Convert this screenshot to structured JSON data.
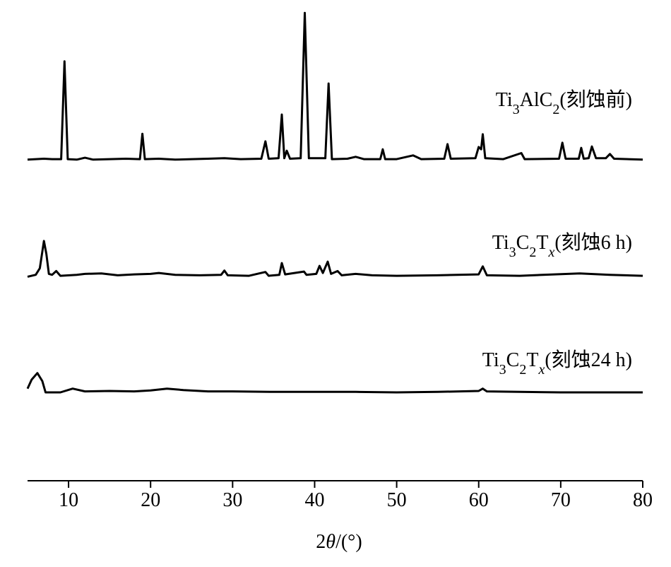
{
  "chart_data": {
    "type": "line",
    "x_label": "2θ/(°)",
    "xlim": [
      5,
      80
    ],
    "xticks": [
      10,
      20,
      30,
      40,
      50,
      60,
      70,
      80
    ],
    "ylim": [
      0,
      100
    ],
    "series": [
      {
        "name": "Ti3AlC2(刻蚀前)",
        "color": "#000000",
        "x": [
          5,
          7,
          8,
          9.1,
          9.5,
          9.9,
          11,
          12,
          13,
          15,
          17,
          18.7,
          19,
          19.3,
          21,
          23,
          25,
          27,
          29,
          31,
          33.5,
          34,
          34.4,
          35.6,
          36,
          36.3,
          36.6,
          37,
          38.3,
          38.8,
          39.3,
          41.3,
          41.7,
          42.1,
          44,
          45,
          46,
          48,
          48.3,
          48.6,
          50,
          52,
          53,
          55.8,
          56.2,
          56.6,
          59.6,
          60,
          60.3,
          60.5,
          60.8,
          63,
          65.2,
          65.6,
          69.8,
          70.2,
          70.6,
          72.2,
          72.5,
          72.8,
          73.4,
          73.8,
          74.3,
          75.5,
          76,
          76.5,
          80
        ],
        "values": [
          68.3,
          68.5,
          68.4,
          68.4,
          89.2,
          68.4,
          68.3,
          68.7,
          68.3,
          68.4,
          68.5,
          68.4,
          73.8,
          68.4,
          68.5,
          68.3,
          68.4,
          68.5,
          68.6,
          68.4,
          68.5,
          72.2,
          68.5,
          68.6,
          77.9,
          68.6,
          70.2,
          68.5,
          68.6,
          99.5,
          68.6,
          68.6,
          84.5,
          68.4,
          68.5,
          68.9,
          68.4,
          68.4,
          70.5,
          68.4,
          68.4,
          69.2,
          68.4,
          68.5,
          71.6,
          68.5,
          68.6,
          71,
          70.5,
          73.7,
          68.6,
          68.4,
          69.7,
          68.4,
          68.5,
          71.9,
          68.5,
          68.5,
          70.8,
          68.5,
          68.6,
          71.1,
          68.6,
          68.6,
          69.5,
          68.5,
          68.3
        ]
      },
      {
        "name": "Ti3C2Tx(刻蚀6 h)",
        "color": "#000000",
        "x": [
          5,
          6,
          6.5,
          7,
          7.3,
          7.6,
          8,
          8.5,
          9,
          11,
          12,
          14,
          16,
          18,
          20,
          21,
          23,
          26,
          28.6,
          29,
          29.4,
          32,
          34,
          34.4,
          35.7,
          36,
          36.4,
          38.7,
          39,
          40.2,
          40.6,
          41,
          41.6,
          42,
          42.8,
          43.3,
          45,
          47,
          50,
          55,
          60,
          60.5,
          61,
          65,
          72.3,
          76,
          80
        ],
        "values": [
          43.4,
          43.8,
          45.2,
          51,
          48.2,
          44,
          43.8,
          44.6,
          43.6,
          43.8,
          44,
          44.1,
          43.7,
          43.9,
          44,
          44.2,
          43.8,
          43.7,
          43.8,
          44.7,
          43.7,
          43.6,
          44.4,
          43.6,
          43.8,
          46.3,
          43.9,
          44.5,
          43.8,
          44,
          45.7,
          44.2,
          46.6,
          44,
          44.6,
          43.7,
          44,
          43.7,
          43.6,
          43.7,
          43.9,
          45.6,
          43.7,
          43.6,
          44.1,
          43.8,
          43.6
        ]
      },
      {
        "name": "Ti3C2Tx(刻蚀24 h)",
        "color": "#000000",
        "x": [
          5,
          5.5,
          6.2,
          6.8,
          7.2,
          9,
          10.5,
          12,
          15,
          18,
          20,
          22,
          24,
          27,
          30,
          35,
          40,
          45,
          50,
          55,
          60,
          60.5,
          61,
          70,
          80
        ],
        "values": [
          19.6,
          21.5,
          22.9,
          21.2,
          18.8,
          18.8,
          19.6,
          19,
          19.1,
          19,
          19.2,
          19.6,
          19.3,
          19,
          19,
          18.9,
          18.9,
          18.9,
          18.8,
          18.9,
          19.1,
          19.6,
          19,
          18.8,
          18.8
        ]
      }
    ]
  }
}
